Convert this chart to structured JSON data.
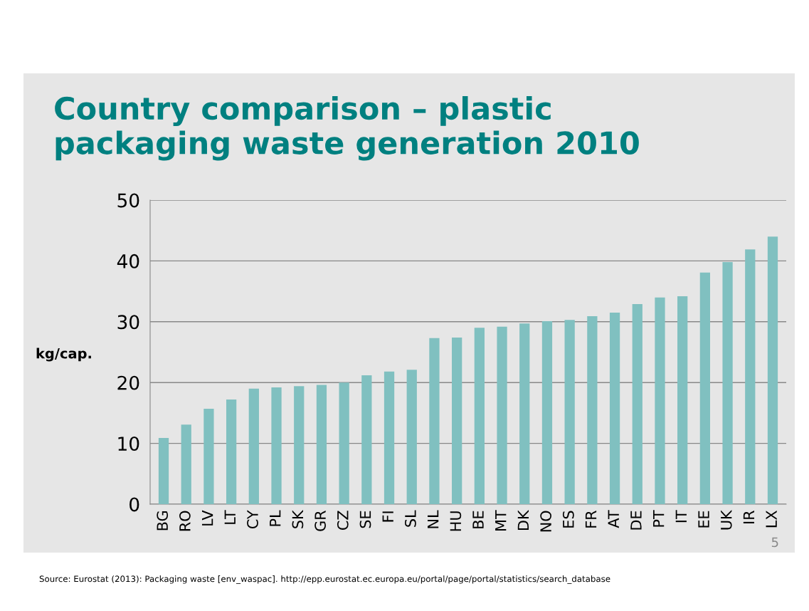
{
  "chart_data": {
    "type": "bar",
    "title": "Country comparison – plastic\npackaging waste generation 2010",
    "ylabel": "kg/cap.",
    "categories": [
      "BG",
      "RO",
      "LV",
      "LT",
      "CY",
      "PL",
      "SK",
      "GR",
      "CZ",
      "SE",
      "FI",
      "SL",
      "NL",
      "HU",
      "BE",
      "MT",
      "DK",
      "NO",
      "ES",
      "FR",
      "AT",
      "DE",
      "PT",
      "IT",
      "EE",
      "UK",
      "IR",
      "LX"
    ],
    "values": [
      10.9,
      13.1,
      15.7,
      17.2,
      19.0,
      19.2,
      19.4,
      19.6,
      20.0,
      21.2,
      21.8,
      22.1,
      27.3,
      27.4,
      29.0,
      29.2,
      29.7,
      30.1,
      30.3,
      30.9,
      31.5,
      32.9,
      34.0,
      34.2,
      38.1,
      39.8,
      41.9,
      44.0
    ],
    "color": "#80c0c0",
    "ylim": [
      0,
      50
    ],
    "yticks": [
      0,
      10,
      20,
      30,
      40,
      50
    ],
    "grid": "y",
    "legend": false,
    "annotations": [
      "5",
      "Source: Eurostat (2013): Packaging waste [env_waspac]. http://epp.eurostat.ec.europa.eu/portal/page/portal/statistics/search_database"
    ]
  }
}
